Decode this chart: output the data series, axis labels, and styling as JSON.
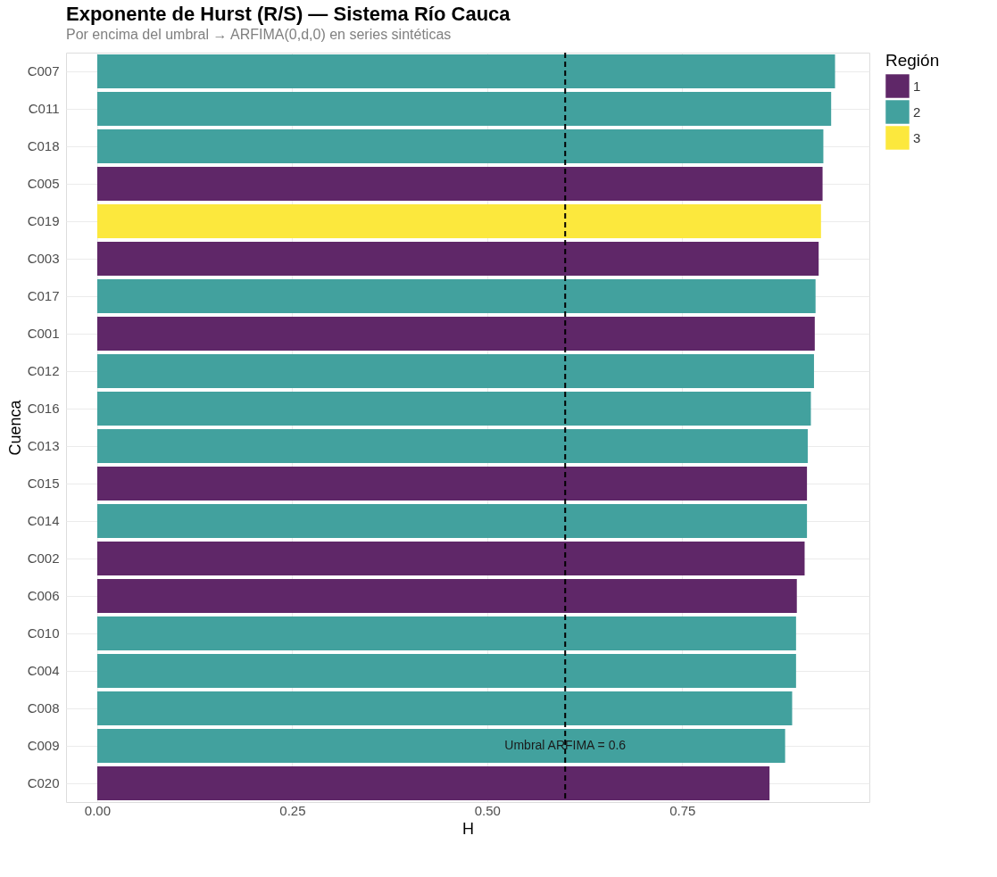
{
  "chart_data": {
    "type": "bar",
    "orientation": "horizontal",
    "title": "Exponente de Hurst (R/S) — Sistema Río Cauca",
    "subtitle": "Por encima del umbral → ARFIMA(0,d,0) en series sintéticas",
    "xlabel": "H",
    "ylabel": "Cuenca",
    "legend_title": "Región",
    "categories": [
      "C007",
      "C011",
      "C018",
      "C005",
      "C019",
      "C003",
      "C017",
      "C001",
      "C012",
      "C016",
      "C013",
      "C015",
      "C014",
      "C002",
      "C006",
      "C010",
      "C004",
      "C008",
      "C009",
      "C020"
    ],
    "series": [
      {
        "name": "1",
        "color": "#5f2768",
        "values": [
          null,
          null,
          null,
          0.93,
          null,
          0.925,
          null,
          0.92,
          null,
          null,
          null,
          0.91,
          null,
          0.907,
          0.897,
          null,
          null,
          null,
          null,
          0.862
        ]
      },
      {
        "name": "2",
        "color": "#42a19e",
        "values": [
          0.946,
          0.941,
          0.931,
          null,
          null,
          null,
          0.921,
          null,
          0.919,
          0.915,
          0.911,
          null,
          0.91,
          null,
          null,
          0.896,
          0.896,
          0.891,
          0.882,
          null
        ]
      },
      {
        "name": "3",
        "color": "#fce83d",
        "values": [
          null,
          null,
          null,
          null,
          0.928,
          null,
          null,
          null,
          null,
          null,
          null,
          null,
          null,
          null,
          null,
          null,
          null,
          null,
          null,
          null
        ]
      }
    ],
    "xlim": [
      -0.04,
      0.99
    ],
    "xticks": [
      {
        "value": 0,
        "label": "0.00"
      },
      0.25,
      {
        "value": 0.5,
        "label": "0.50"
      },
      0.75
    ],
    "ref_lines": [
      {
        "axis": "x",
        "value": 0.6,
        "color": "#000000",
        "line_style": "dashed"
      }
    ],
    "annotations": [
      {
        "text": "Umbral ARFIMA = 0.6",
        "x": 0.6,
        "y": "C009"
      }
    ],
    "grid": true,
    "legend": "right"
  }
}
